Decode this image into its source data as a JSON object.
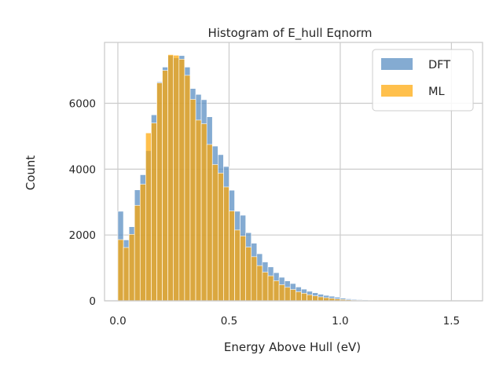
{
  "chart_data": {
    "type": "bar",
    "title": "Histogram of E_hull Eqnorm",
    "xlabel": "Energy Above Hull (eV)",
    "ylabel": "Count",
    "xlim": [
      -0.06,
      1.64
    ],
    "ylim": [
      0,
      7850
    ],
    "xticks": [
      0.0,
      0.5,
      1.0,
      1.5
    ],
    "xtick_labels": [
      "0.0",
      "0.5",
      "1.0",
      "1.5"
    ],
    "yticks": [
      0,
      2000,
      4000,
      6000
    ],
    "ytick_labels": [
      "0",
      "2000",
      "4000",
      "6000"
    ],
    "grid": true,
    "legend_position": "top-right",
    "bin_start": 0.0,
    "bin_width": 0.025,
    "series": [
      {
        "name": "DFT",
        "color": "#5b8fc3",
        "opacity": 0.75,
        "values": [
          2720,
          1850,
          2250,
          3370,
          3830,
          4560,
          5650,
          6650,
          7100,
          7450,
          7380,
          7450,
          7100,
          6450,
          6270,
          6110,
          5590,
          4700,
          4440,
          4080,
          3360,
          2720,
          2600,
          2070,
          1750,
          1430,
          1180,
          1030,
          855,
          715,
          605,
          525,
          420,
          355,
          290,
          245,
          200,
          165,
          140,
          110,
          80,
          60,
          45,
          35,
          25,
          18,
          12,
          8,
          6,
          4,
          3,
          2,
          2,
          1,
          1,
          1,
          1,
          1,
          1,
          1,
          1,
          1,
          1
        ]
      },
      {
        "name": "ML",
        "color": "#ffa500",
        "opacity": 0.7,
        "values": [
          1860,
          1620,
          2020,
          2900,
          3540,
          5100,
          5400,
          6620,
          7000,
          7480,
          7460,
          7340,
          6850,
          6120,
          5490,
          5380,
          4750,
          4140,
          3880,
          3460,
          2730,
          2150,
          1970,
          1630,
          1340,
          1070,
          870,
          760,
          610,
          490,
          410,
          345,
          275,
          230,
          185,
          150,
          120,
          95,
          75,
          55,
          40,
          30,
          22,
          16,
          11,
          8,
          5,
          3,
          2,
          1,
          1,
          1,
          1,
          0,
          0,
          0,
          0,
          0,
          0,
          0,
          0,
          0,
          0
        ]
      }
    ]
  }
}
